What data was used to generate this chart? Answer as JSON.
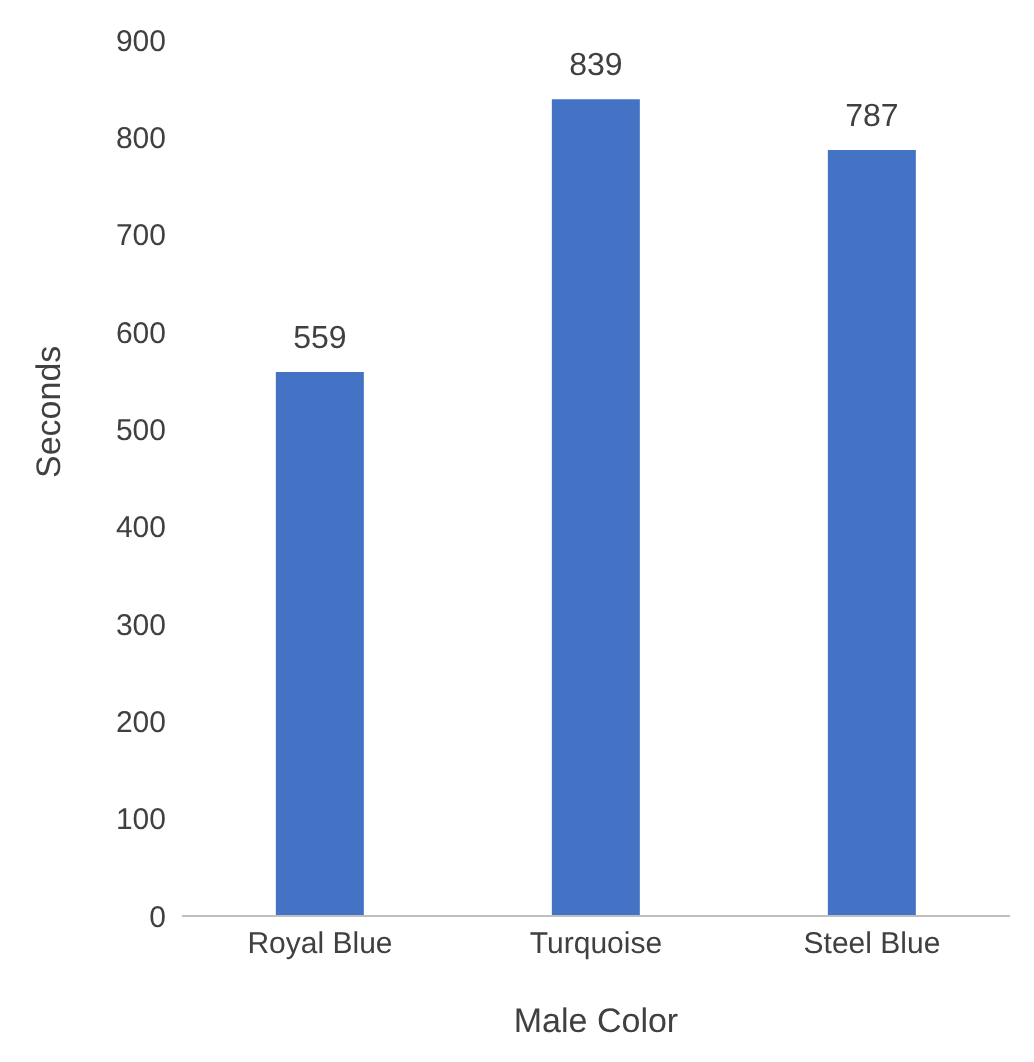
{
  "chart_data": {
    "type": "bar",
    "xlabel": "Male Color",
    "ylabel": "Seconds",
    "categories": [
      "Royal Blue",
      "Turquoise",
      "Steel Blue"
    ],
    "values": [
      559,
      839,
      787
    ],
    "color": "#4472c4",
    "ylim": [
      0,
      900
    ],
    "yticks": [
      0,
      100,
      200,
      300,
      400,
      500,
      600,
      700,
      800,
      900
    ],
    "data_labels": true
  }
}
